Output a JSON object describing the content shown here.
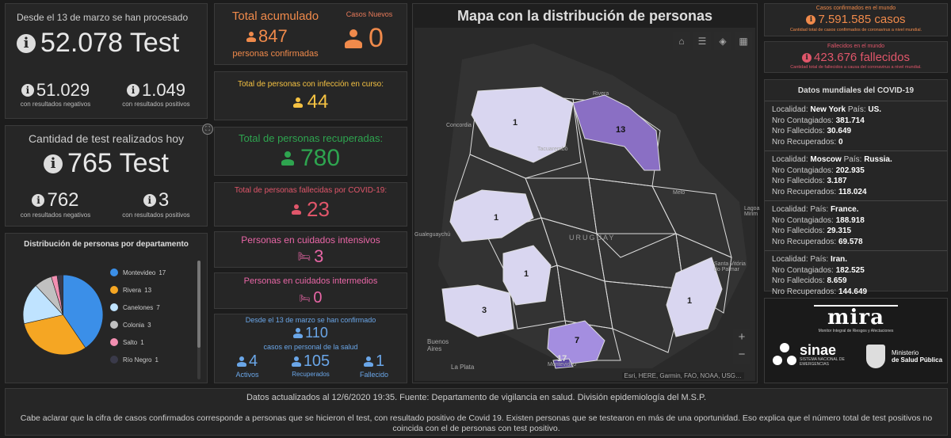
{
  "tests": {
    "since_label": "Desde el 13 de marzo se han procesado",
    "total": "52.078 Test",
    "negatives": "51.029",
    "negatives_label": "con resultados negativos",
    "positives": "1.049",
    "positives_label": "con resultados positivos"
  },
  "today": {
    "title": "Cantidad de test realizados hoy",
    "total": "765 Test",
    "negatives": "762",
    "negatives_label": "con resultados negativos",
    "positives": "3",
    "positives_label": "con resultados positivos"
  },
  "distribution": {
    "title": "Distribución de personas por departamento",
    "items": [
      {
        "name": "Montevideo",
        "value": "17",
        "color": "#3b8fe8"
      },
      {
        "name": "Rivera",
        "value": "13",
        "color": "#f5a623"
      },
      {
        "name": "Canelones",
        "value": "7",
        "color": "#bfe3ff"
      },
      {
        "name": "Colonia",
        "value": "3",
        "color": "#c0c0c0"
      },
      {
        "name": "Salto",
        "value": "1",
        "color": "#f28fb1"
      },
      {
        "name": "Río Negro",
        "value": "1",
        "color": "#3a3a4a"
      }
    ]
  },
  "accumulated": {
    "title": "Total acumulado",
    "value": "847",
    "label": "personas confirmadas",
    "new_title": "Casos Nuevos",
    "new_value": "0"
  },
  "active": {
    "title": "Total de personas con infección en curso:",
    "value": "44"
  },
  "recovered": {
    "title": "Total de personas recuperadas:",
    "value": "780"
  },
  "deceased": {
    "title": "Total de personas fallecidas por COVID-19:",
    "value": "23"
  },
  "icu": {
    "title": "Personas en cuidados intensivos",
    "value": "3"
  },
  "intermediate": {
    "title": "Personas en cuidados intermedios",
    "value": "0"
  },
  "health_staff": {
    "title": "Desde el 13 de marzo se han confirmado",
    "value": "110",
    "label": "casos en personal de la salud",
    "active": "4",
    "active_label": "Activos",
    "recovered": "105",
    "recovered_label": "Recuperados",
    "deceased": "1",
    "deceased_label": "Fallecido"
  },
  "map": {
    "title": "Mapa con la distribución de personas",
    "attribution": "Esri, HERE, Garmin, FAO, NOAA, USG…",
    "zoom_in": "+",
    "zoom_out": "−",
    "places": [
      "Rivera",
      "Concordia",
      "Tacuarembó",
      "Melo",
      "URUGUAY",
      "Gualeguaychú",
      "Santa Vitória do Palmar",
      "Buenos Aires",
      "La Plata",
      "Montevideo",
      "Lagoa Mirim"
    ],
    "regions": [
      {
        "label": "1",
        "color": "#d9d6f0"
      },
      {
        "label": "13",
        "color": "#8a6fc4"
      },
      {
        "label": "1",
        "color": "#d9d6f0"
      },
      {
        "label": "1",
        "color": "#d9d6f0"
      },
      {
        "label": "3",
        "color": "#d9d6f0"
      },
      {
        "label": "7",
        "color": "#a48ee0"
      },
      {
        "label": "17",
        "color": "#5a48a0"
      },
      {
        "label": "1",
        "color": "#d9d6f0"
      }
    ]
  },
  "world": {
    "confirmed_label": "Casos confirmados en el mundo",
    "confirmed": "7.591.585 casos",
    "confirmed_note": "Cantidad total de casos confirmados de coronavirus a nivel mundial.",
    "deaths_label": "Fallecidos en el mundo",
    "deaths": "423.676 fallecidos",
    "deaths_note": "Cantidad total de fallecidos a causa del coronavirus a nivel mundial.",
    "list_title": "Datos mundiales del COVID-19",
    "loc_label": "Localidad:",
    "country_label": "País:",
    "conf_label": "Nro Contagiados:",
    "dead_label": "Nro Fallecidos:",
    "rec_label": "Nro Recuperados:",
    "rows": [
      {
        "city": "New York",
        "country": "US.",
        "conf": "381.714",
        "dead": "30.649",
        "rec": "0"
      },
      {
        "city": "Moscow",
        "country": "Russia.",
        "conf": "202.935",
        "dead": "3.187",
        "rec": "118.024"
      },
      {
        "city": "",
        "country": "France.",
        "conf": "188.918",
        "dead": "29.315",
        "rec": "69.578"
      },
      {
        "city": "",
        "country": "Iran.",
        "conf": "182.525",
        "dead": "8.659",
        "rec": "144.649"
      }
    ]
  },
  "logos": {
    "mira": "mira",
    "mira_sub": "Monitor Integral de Riesgos y Afectaciones",
    "sinae": "sinae",
    "sinae_sub": "SISTEMA NACIONAL DE EMERGENCIAS",
    "msp_a": "Ministerio",
    "msp_b": "de Salud Pública"
  },
  "footer": {
    "updated": "Datos actualizados al 12/6/2020 19:35. Fuente: Departamento de vigilancia en salud. División epidemiología del M.S.P.",
    "note": "Cabe aclarar que la cifra de casos confirmados corresponde a personas que se hicieron el test, con resultado positivo de Covid 19. Existen personas que se testearon en más de una oportunidad. Eso explica que el número total de test positivos no coincida con el de personas con test positivo."
  }
}
